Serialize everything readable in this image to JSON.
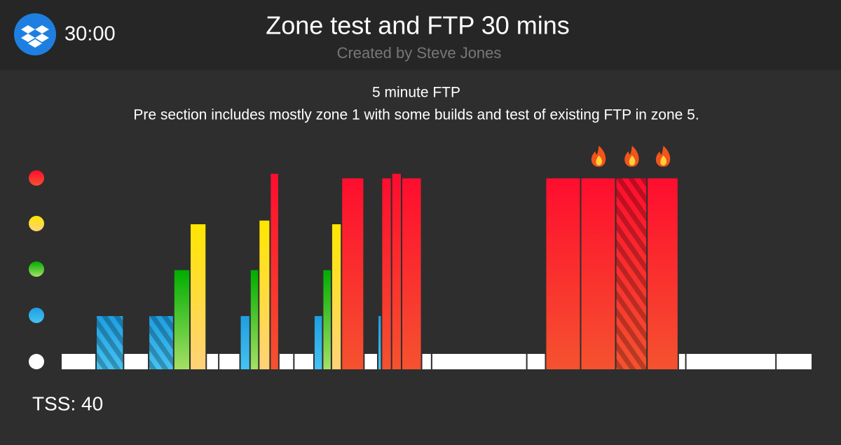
{
  "header": {
    "duration": "30:00",
    "title": "Zone test and FTP 30 mins",
    "author": "Created by Steve Jones"
  },
  "description": {
    "heading": "5 minute FTP",
    "text": "Pre section includes mostly zone 1 with some builds and test of existing FTP in zone 5."
  },
  "workout": {
    "xlim": [
      0,
      30
    ],
    "segments": [
      {
        "level": 1,
        "minutes": 1.4
      },
      {
        "level": 2,
        "minutes": 1.1,
        "striped": true
      },
      {
        "level": 1,
        "minutes": 1.0
      },
      {
        "level": 2,
        "minutes": 1.0,
        "striped": true
      },
      {
        "level": 3,
        "minutes": 0.65
      },
      {
        "level": 4,
        "minutes": 0.65
      },
      {
        "level": 1,
        "minutes": 0.5
      },
      {
        "level": 1,
        "minutes": 0.85
      },
      {
        "level": 2,
        "minutes": 0.4
      },
      {
        "level": 3,
        "minutes": 0.35
      },
      {
        "level": 4.08,
        "minutes": 0.45
      },
      {
        "level": 5.1,
        "minutes": 0.35
      },
      {
        "level": 1,
        "minutes": 0.6
      },
      {
        "level": 1,
        "minutes": 0.8
      },
      {
        "level": 2,
        "minutes": 0.35
      },
      {
        "level": 3,
        "minutes": 0.35
      },
      {
        "level": 4,
        "minutes": 0.4
      },
      {
        "level": 5,
        "minutes": 0.9
      },
      {
        "level": 1,
        "minutes": 0.55
      },
      {
        "level": 2,
        "minutes": 0.15
      },
      {
        "level": 5,
        "minutes": 0.4
      },
      {
        "level": 5.1,
        "minutes": 0.4
      },
      {
        "level": 5,
        "minutes": 0.8
      },
      {
        "level": 1,
        "minutes": 0.4
      },
      {
        "level": 1,
        "minutes": 3.8
      },
      {
        "level": 1,
        "minutes": 0.75
      },
      {
        "level": 5,
        "minutes": 1.4
      },
      {
        "level": 5,
        "minutes": 1.4,
        "flame": true
      },
      {
        "level": 5,
        "minutes": 1.25,
        "flame": true,
        "striped": true
      },
      {
        "level": 5,
        "minutes": 1.25,
        "flame": true
      },
      {
        "level": 1,
        "minutes": 0.3
      },
      {
        "level": 1,
        "minutes": 3.6
      },
      {
        "level": 1,
        "minutes": 1.45
      }
    ]
  },
  "footer": {
    "tss": "TSS: 40"
  }
}
